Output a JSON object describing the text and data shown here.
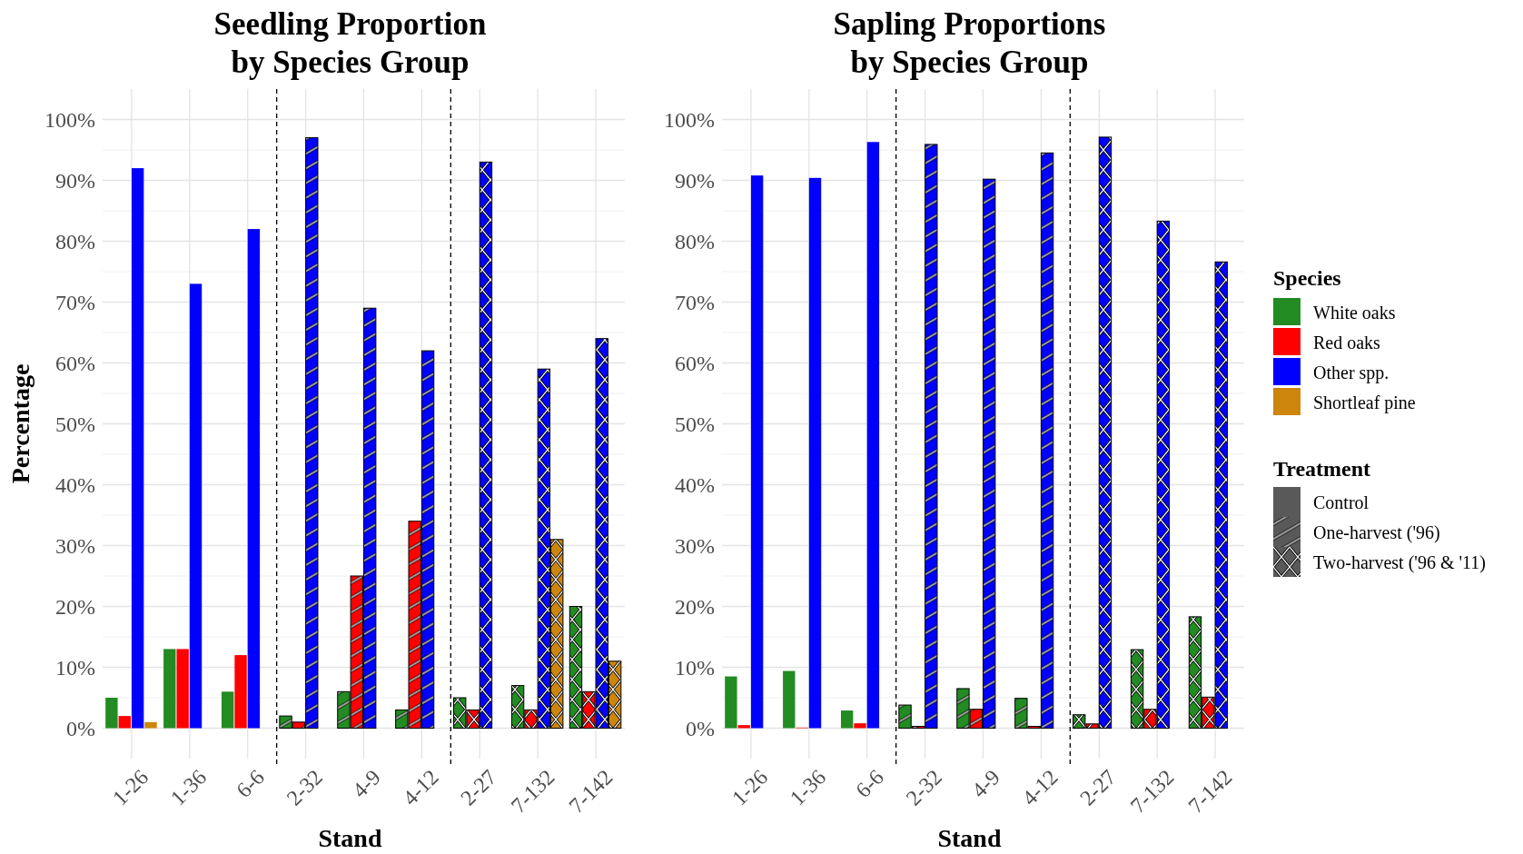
{
  "chart_data": [
    {
      "type": "bar",
      "title": "Seedling Proportion\nby Species Group",
      "xlabel": "Stand",
      "ylabel": "Percentage",
      "legend_title": "Species",
      "legend": "right",
      "grid": true,
      "categories": [
        "1-26",
        "1-36",
        "6-6",
        "2-32",
        "4-9",
        "4-12",
        "2-27",
        "7-132",
        "7-142"
      ],
      "ylim": [
        -5,
        105
      ],
      "yticks": [
        {
          "value": 0,
          "label": "0%"
        },
        {
          "value": 10,
          "label": "10%"
        },
        {
          "value": 20,
          "label": "20%"
        },
        {
          "value": 30,
          "label": "30%"
        },
        {
          "value": 40,
          "label": "40%"
        },
        {
          "value": 50,
          "label": "50%"
        },
        {
          "value": 60,
          "label": "60%"
        },
        {
          "value": 70,
          "label": "70%"
        },
        {
          "value": 80,
          "label": "80%"
        },
        {
          "value": 90,
          "label": "90%"
        },
        {
          "value": 100,
          "label": "100%"
        }
      ],
      "annotations": [
        "Treatment",
        "Control",
        "One-harvest ('96)",
        "Two-harvest ('96 & '11)"
      ],
      "series": [
        {
          "name": "White oaks",
          "color": "#228b22",
          "values": [
            5,
            13,
            6,
            2,
            6,
            3,
            5,
            7,
            20
          ]
        },
        {
          "name": "Red oaks",
          "color": "#ff0000",
          "values": [
            2,
            13,
            12,
            1,
            25,
            34,
            3,
            3,
            6
          ]
        },
        {
          "name": "Other spp.",
          "color": "#0000ff",
          "values": [
            92,
            73,
            82,
            97,
            69,
            62,
            93,
            59,
            64
          ]
        },
        {
          "name": "Shortleaf pine",
          "color": "#cd850b",
          "values": [
            1,
            0,
            0,
            0,
            0,
            0,
            0,
            31,
            11
          ]
        }
      ]
    },
    {
      "type": "bar",
      "title": "Sapling Proportions\nby Species Group",
      "xlabel": "Stand",
      "grid": true,
      "categories": [
        "1-26",
        "1-36",
        "6-6",
        "2-32",
        "4-9",
        "4-12",
        "2-27",
        "7-132",
        "7-142"
      ],
      "ylim": [
        -5,
        105
      ],
      "yticks": [
        {
          "value": 0,
          "label": "0%"
        },
        {
          "value": 10,
          "label": "10%"
        },
        {
          "value": 20,
          "label": "20%"
        },
        {
          "value": 30,
          "label": "30%"
        },
        {
          "value": 40,
          "label": "40%"
        },
        {
          "value": 50,
          "label": "50%"
        },
        {
          "value": 60,
          "label": "60%"
        },
        {
          "value": 70,
          "label": "70%"
        },
        {
          "value": 80,
          "label": "80%"
        },
        {
          "value": 90,
          "label": "90%"
        },
        {
          "value": 100,
          "label": "100%"
        }
      ],
      "series": [
        {
          "color": "#228b22",
          "values": [
            8.5,
            9.4,
            2.9,
            3.8,
            6.5,
            4.9,
            2.2,
            12.9,
            18.3
          ]
        },
        {
          "color": "#ff0000",
          "values": [
            0.5,
            0.1,
            0.8,
            0.3,
            3.1,
            0.3,
            0.7,
            3.1,
            5.1
          ]
        },
        {
          "color": "#0000ff",
          "values": [
            90.8,
            90.4,
            96.3,
            95.9,
            90.2,
            94.5,
            97.1,
            83.3,
            76.6
          ]
        },
        {
          "color": "#cd850b",
          "values": [
            0,
            0,
            0,
            0,
            0,
            0,
            0,
            0,
            0
          ]
        }
      ]
    }
  ]
}
